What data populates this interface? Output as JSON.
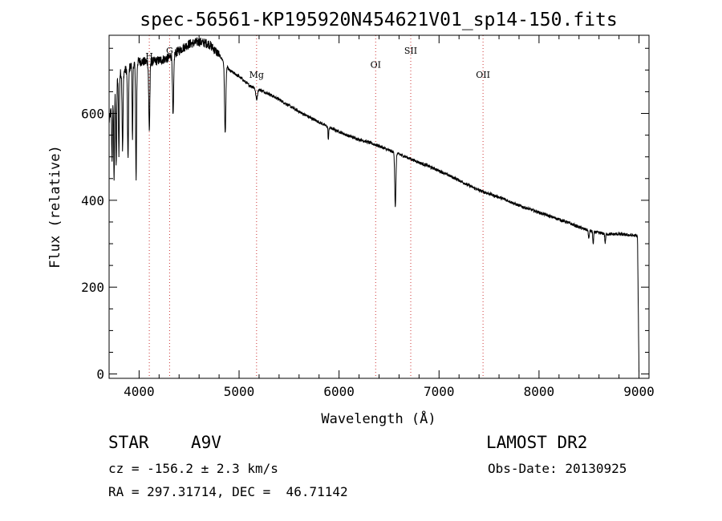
{
  "chart_data": {
    "type": "line",
    "title": "spec-56561-KP195920N454621V01_sp14-150.fits",
    "xlabel": "Wavelength (Å)",
    "ylabel": "Flux (relative)",
    "xlim": [
      3700,
      9100
    ],
    "ylim": [
      -10,
      780
    ],
    "x_ticks": [
      4000,
      5000,
      6000,
      7000,
      8000,
      9000
    ],
    "y_ticks": [
      0,
      200,
      400,
      600
    ],
    "grid": false,
    "line_color": "#000000",
    "marker_color": "#cc3333",
    "continuum": [
      [
        3700,
        580
      ],
      [
        3740,
        640
      ],
      [
        3800,
        690
      ],
      [
        3900,
        705
      ],
      [
        3950,
        715
      ],
      [
        4000,
        720
      ],
      [
        4100,
        718
      ],
      [
        4200,
        722
      ],
      [
        4300,
        728
      ],
      [
        4400,
        745
      ],
      [
        4500,
        760
      ],
      [
        4600,
        765
      ],
      [
        4700,
        760
      ],
      [
        4800,
        735
      ],
      [
        4850,
        718
      ],
      [
        4900,
        700
      ],
      [
        5000,
        685
      ],
      [
        5100,
        665
      ],
      [
        5200,
        655
      ],
      [
        5300,
        645
      ],
      [
        5400,
        632
      ],
      [
        5500,
        618
      ],
      [
        5600,
        604
      ],
      [
        5700,
        592
      ],
      [
        5800,
        580
      ],
      [
        5900,
        568
      ],
      [
        6000,
        558
      ],
      [
        6100,
        548
      ],
      [
        6200,
        540
      ],
      [
        6300,
        533
      ],
      [
        6400,
        525
      ],
      [
        6500,
        515
      ],
      [
        6600,
        506
      ],
      [
        6700,
        497
      ],
      [
        6800,
        487
      ],
      [
        6900,
        478
      ],
      [
        7000,
        468
      ],
      [
        7100,
        457
      ],
      [
        7200,
        446
      ],
      [
        7300,
        434
      ],
      [
        7400,
        423
      ],
      [
        7500,
        415
      ],
      [
        7600,
        407
      ],
      [
        7700,
        398
      ],
      [
        7800,
        388
      ],
      [
        7900,
        380
      ],
      [
        8000,
        372
      ],
      [
        8100,
        364
      ],
      [
        8200,
        356
      ],
      [
        8300,
        348
      ],
      [
        8400,
        338
      ],
      [
        8500,
        330
      ],
      [
        8600,
        325
      ],
      [
        8700,
        322
      ],
      [
        8800,
        322
      ],
      [
        8900,
        320
      ],
      [
        8980,
        318
      ]
    ],
    "absorption_lines": [
      {
        "center": 3730,
        "depth": 130,
        "width": 6
      },
      {
        "center": 3750,
        "depth": 200,
        "width": 6
      },
      {
        "center": 3771,
        "depth": 190,
        "width": 6
      },
      {
        "center": 3798,
        "depth": 180,
        "width": 6
      },
      {
        "center": 3835,
        "depth": 180,
        "width": 7
      },
      {
        "center": 3889,
        "depth": 210,
        "width": 7
      },
      {
        "center": 3934,
        "depth": 180,
        "width": 5
      },
      {
        "center": 3970,
        "depth": 265,
        "width": 7
      },
      {
        "center": 4102,
        "depth": 155,
        "width": 8
      },
      {
        "center": 4340,
        "depth": 145,
        "width": 8
      },
      {
        "center": 4861,
        "depth": 160,
        "width": 9
      },
      {
        "center": 5175,
        "depth": 25,
        "width": 12
      },
      {
        "center": 5893,
        "depth": 30,
        "width": 5
      },
      {
        "center": 6563,
        "depth": 125,
        "width": 8
      },
      {
        "center": 8498,
        "depth": 20,
        "width": 6
      },
      {
        "center": 8542,
        "depth": 30,
        "width": 6
      },
      {
        "center": 8662,
        "depth": 22,
        "width": 6
      }
    ],
    "dropoff": {
      "start": 8985,
      "end": 9000,
      "value": 5
    },
    "line_markers": [
      {
        "label": "H",
        "x": 4102,
        "label_y": 725
      },
      {
        "label": "G",
        "x": 4305,
        "label_y": 738
      },
      {
        "label": "Mg",
        "x": 5175,
        "label_y": 682
      },
      {
        "label": "OI",
        "x": 6366,
        "label_y": 705
      },
      {
        "label": "SII",
        "x": 6717,
        "label_y": 738
      },
      {
        "label": "OII",
        "x": 7440,
        "label_y": 682
      }
    ]
  },
  "info": {
    "object_class": "STAR",
    "subclass": "A9V",
    "survey": "LAMOST DR2",
    "redshift_line": "cz = -156.2 ± 2.3 km/s",
    "obs_date": "Obs-Date: 20130925",
    "coords": "RA = 297.31714, DEC =  46.71142"
  }
}
